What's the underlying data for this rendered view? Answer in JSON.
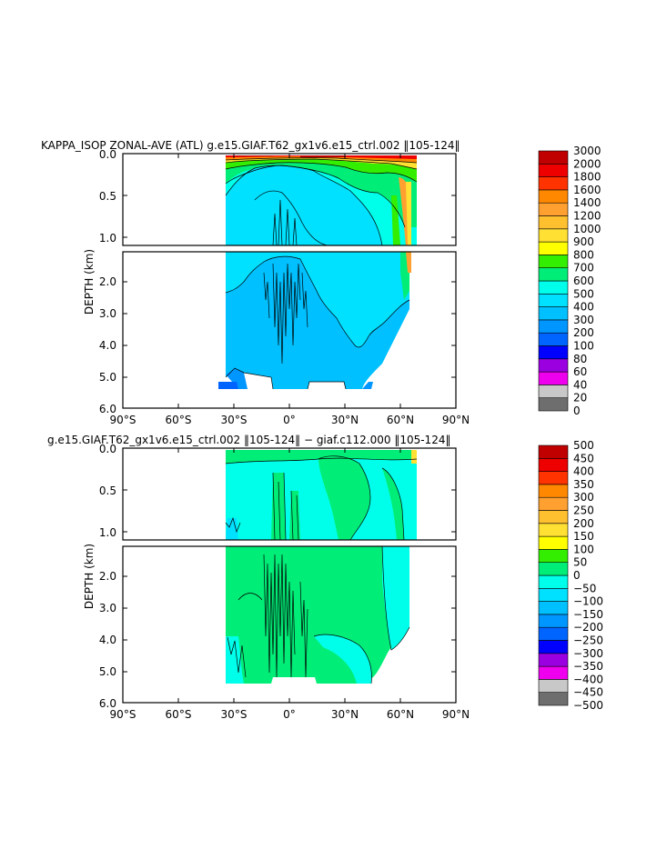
{
  "chart_data": [
    {
      "type": "heatmap",
      "title": "KAPPA_ISOP ZONAL-AVE (ATL) g.e15.GIAF.T62_gx1v6.e15_ctrl.002 ‖105-124‖",
      "ylabel": "DEPTH (km)",
      "xlabel": "",
      "x_ticks": [
        "90°S",
        "60°S",
        "30°S",
        "0°",
        "30°N",
        "60°N",
        "90°N"
      ],
      "y_ticks_upper": [
        "0.0",
        "0.5",
        "1.0"
      ],
      "y_ticks_lower": [
        "2.0",
        "3.0",
        "4.0",
        "5.0",
        "6.0"
      ],
      "xlim": [
        -90,
        90
      ],
      "ylim_upper_km": [
        0,
        1.1
      ],
      "ylim_lower_km": [
        1.1,
        6.0
      ],
      "colorbar": {
        "levels": [
          "0",
          "20",
          "40",
          "60",
          "80",
          "100",
          "200",
          "300",
          "400",
          "500",
          "600",
          "700",
          "800",
          "900",
          "1000",
          "1200",
          "1400",
          "1600",
          "1800",
          "2000",
          "3000"
        ],
        "colors": [
          "#6e6e6e",
          "#c8c8c8",
          "#ee00ee",
          "#9a00e0",
          "#0000ff",
          "#0064ff",
          "#0096ff",
          "#00c0ff",
          "#00e0ff",
          "#00ffea",
          "#00ee78",
          "#33ee00",
          "#ffff00",
          "#ffe033",
          "#ffc030",
          "#ffa030",
          "#ff8800",
          "#ff3300",
          "#ee0000",
          "#c00000"
        ]
      }
    },
    {
      "type": "heatmap",
      "title": "g.e15.GIAF.T62_gx1v6.e15_ctrl.002 ‖105-124‖ − giaf.c112.000 ‖105-124‖",
      "ylabel": "DEPTH (km)",
      "xlabel": "",
      "x_ticks": [
        "90°S",
        "60°S",
        "30°S",
        "0°",
        "30°N",
        "60°N",
        "90°N"
      ],
      "y_ticks_upper": [
        "0.0",
        "0.5",
        "1.0"
      ],
      "y_ticks_lower": [
        "2.0",
        "3.0",
        "4.0",
        "5.0",
        "6.0"
      ],
      "xlim": [
        -90,
        90
      ],
      "ylim_upper_km": [
        0,
        1.1
      ],
      "ylim_lower_km": [
        1.1,
        6.0
      ],
      "colorbar": {
        "levels": [
          "−500",
          "−450",
          "−400",
          "−350",
          "−300",
          "−250",
          "−200",
          "−150",
          "−100",
          "−50",
          "0",
          "50",
          "100",
          "150",
          "200",
          "250",
          "300",
          "350",
          "400",
          "450",
          "500"
        ],
        "colors": [
          "#6e6e6e",
          "#c8c8c8",
          "#ee00ee",
          "#9a00e0",
          "#0000ff",
          "#0064ff",
          "#0096ff",
          "#00c0ff",
          "#00e0ff",
          "#00ffea",
          "#00ee78",
          "#33ee00",
          "#ffff00",
          "#ffe033",
          "#ffc030",
          "#ffa030",
          "#ff8800",
          "#ff3300",
          "#ee0000",
          "#c00000"
        ]
      }
    }
  ]
}
